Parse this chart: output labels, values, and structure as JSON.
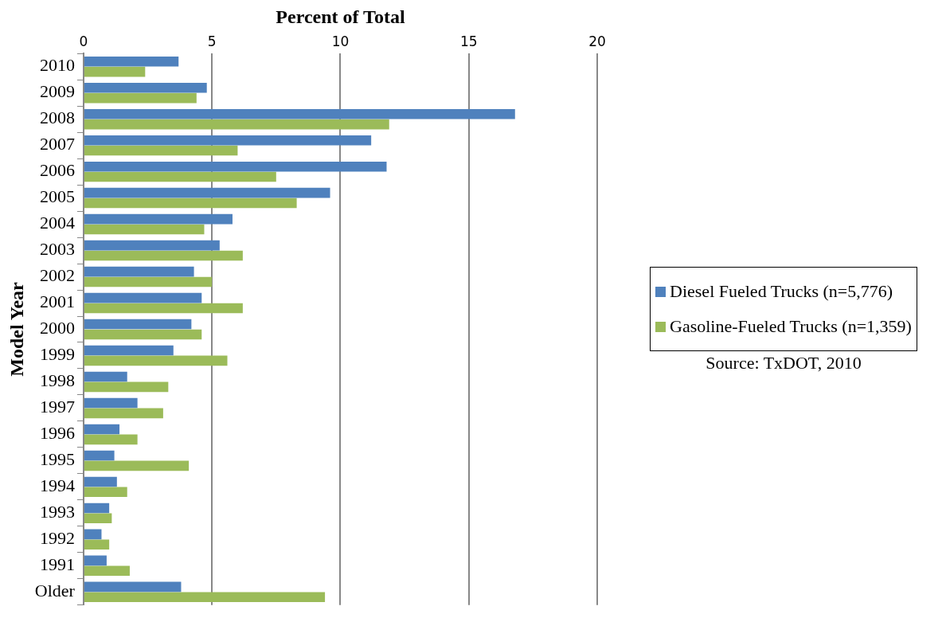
{
  "chart_data": {
    "type": "bar",
    "orientation": "horizontal",
    "xlabel": "Percent of Total",
    "ylabel": "Model Year",
    "categories": [
      "2010",
      "2009",
      "2008",
      "2007",
      "2006",
      "2005",
      "2004",
      "2003",
      "2002",
      "2001",
      "2000",
      "1999",
      "1998",
      "1997",
      "1996",
      "1995",
      "1994",
      "1993",
      "1992",
      "1991",
      "Older"
    ],
    "series": [
      {
        "name": "Diesel Fueled Trucks (n=5,776)",
        "color": "#4f81bd",
        "values": [
          3.7,
          4.8,
          16.8,
          11.2,
          11.8,
          9.6,
          5.8,
          5.3,
          4.3,
          4.6,
          4.2,
          3.5,
          1.7,
          2.1,
          1.4,
          1.2,
          1.3,
          1.0,
          0.7,
          0.9,
          3.8
        ]
      },
      {
        "name": "Gasoline-Fueled Trucks (n=1,359)",
        "color": "#9bbb59",
        "values": [
          2.4,
          4.4,
          11.9,
          6.0,
          7.5,
          8.3,
          4.7,
          6.2,
          5.0,
          6.2,
          4.6,
          5.6,
          3.3,
          3.1,
          2.1,
          4.1,
          1.7,
          1.1,
          1.0,
          1.8,
          9.4
        ]
      }
    ],
    "xlim": [
      0,
      20
    ],
    "xticks": [
      0,
      5,
      10,
      15,
      20
    ],
    "grid": "x",
    "legend": "right",
    "annotations": [
      "Source: TxDOT, 2010"
    ]
  }
}
